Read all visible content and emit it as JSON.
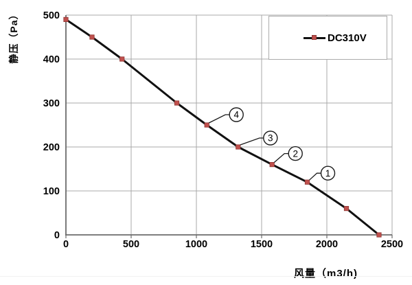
{
  "axis_titles": {
    "y": "静压（Pa）",
    "x": "风量（m3/h)"
  },
  "legend": {
    "label": "DC310V"
  },
  "colors": {
    "series_line": "#111111",
    "marker": "#c0504d",
    "marker_border": "#8f3836",
    "gridline": "#a8a8a8",
    "axis": "#6b6b6b",
    "annotation": "#1a1a1a",
    "legend_border": "#ababab"
  },
  "chart_data": {
    "type": "line",
    "title": "",
    "xlabel": "风量（m3/h)",
    "ylabel": "静压（Pa）",
    "xlim": [
      0,
      2500
    ],
    "ylim": [
      0,
      500
    ],
    "x_ticks": [
      0,
      500,
      1000,
      1500,
      2000,
      2500
    ],
    "y_ticks": [
      0,
      100,
      200,
      300,
      400,
      500
    ],
    "grid": true,
    "legend_position": "top-right",
    "series": [
      {
        "name": "DC310V",
        "points": [
          [
            0,
            490
          ],
          [
            200,
            450
          ],
          [
            430,
            400
          ],
          [
            850,
            300
          ],
          [
            1080,
            250
          ],
          [
            1320,
            200
          ],
          [
            1580,
            160
          ],
          [
            1850,
            120
          ],
          [
            2150,
            60
          ],
          [
            2400,
            0
          ]
        ]
      }
    ],
    "annotations": [
      {
        "label": "④",
        "num": "4",
        "point": [
          1080,
          250
        ],
        "offset": [
          43,
          -15
        ]
      },
      {
        "label": "③",
        "num": "3",
        "point": [
          1320,
          200
        ],
        "offset": [
          47,
          -13
        ]
      },
      {
        "label": "②",
        "num": "2",
        "point": [
          1580,
          160
        ],
        "offset": [
          34,
          -16
        ]
      },
      {
        "label": "①",
        "num": "1",
        "point": [
          1850,
          120
        ],
        "offset": [
          30,
          -13
        ]
      }
    ]
  }
}
